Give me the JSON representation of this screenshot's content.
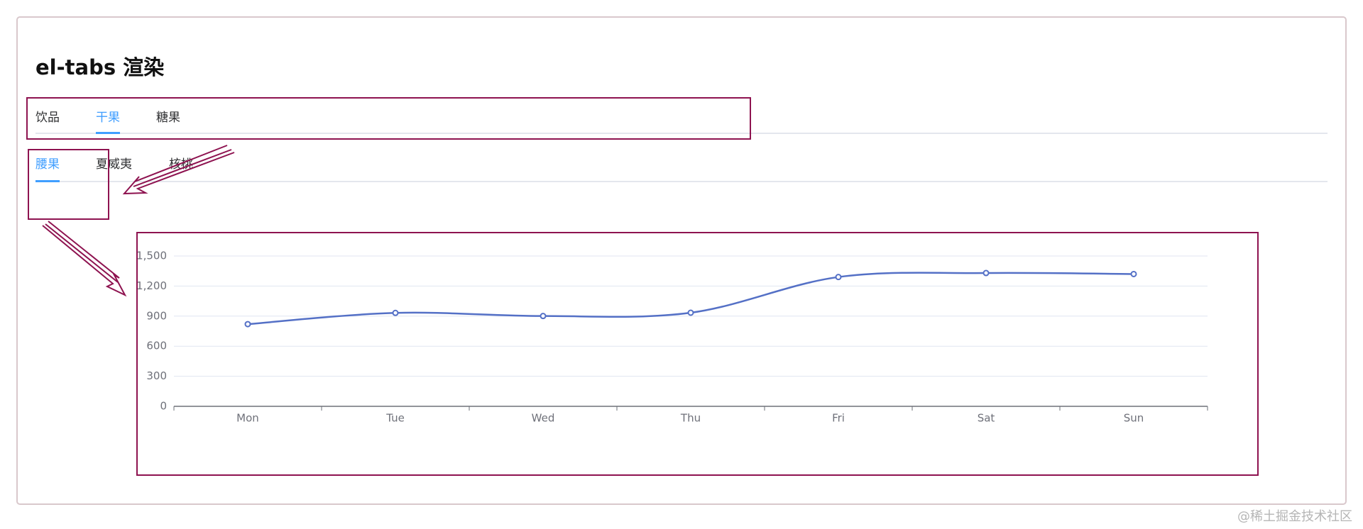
{
  "header": {
    "title": "el-tabs 渲染"
  },
  "tabs": {
    "items": [
      "饮品",
      "干果",
      "糖果"
    ],
    "active": 1
  },
  "subtabs": {
    "items": [
      "腰果",
      "夏威夷",
      "核桃"
    ],
    "active": 0
  },
  "chart_data": {
    "type": "line",
    "smooth": true,
    "color": "#5470c6",
    "categories": [
      "Mon",
      "Tue",
      "Wed",
      "Thu",
      "Fri",
      "Sat",
      "Sun"
    ],
    "values": [
      820,
      932,
      901,
      934,
      1290,
      1330,
      1320
    ],
    "ylim": [
      0,
      1500
    ],
    "yticks": [
      0,
      300,
      600,
      900,
      {
        "value": 1200,
        "label": "1,200"
      },
      {
        "value": 1500,
        "label": "1,500"
      }
    ],
    "grid": true
  },
  "watermark": "@稀土掘金技术社区"
}
